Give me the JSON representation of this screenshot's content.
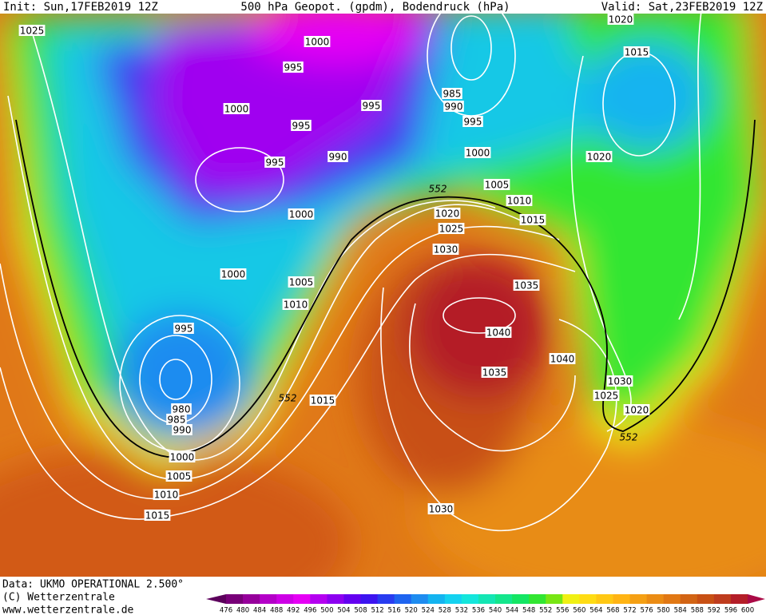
{
  "header": {
    "init": "Init: Sun,17FEB2019 12Z",
    "title": "500 hPa Geopot. (gpdm), Bodendruck (hPa)",
    "valid": "Valid: Sat,23FEB2019 12Z"
  },
  "footer": {
    "data": "Data: UKMO OPERATIONAL 2.500°",
    "copyright": "(C) Wetterzentrale",
    "url": "www.wetterzentrale.de"
  },
  "colorbar": {
    "labels": [
      476,
      480,
      484,
      488,
      492,
      496,
      500,
      504,
      508,
      512,
      516,
      520,
      524,
      528,
      532,
      536,
      540,
      544,
      548,
      552,
      556,
      560,
      564,
      568,
      572,
      576,
      580,
      584,
      588,
      592,
      596,
      600
    ],
    "colors": [
      "#5c005c",
      "#780078",
      "#96009b",
      "#b400c8",
      "#cd00e6",
      "#e600f5",
      "#b400f0",
      "#8c00f0",
      "#6400f0",
      "#3c14f0",
      "#283cf0",
      "#1e64f0",
      "#1e8cf0",
      "#14b4f0",
      "#14d2f0",
      "#14e6dc",
      "#14e6b4",
      "#14e68c",
      "#14e664",
      "#32e632",
      "#78e614",
      "#f0f014",
      "#ffdc14",
      "#ffc814",
      "#ffb414",
      "#f5a014",
      "#eb8c14",
      "#e17814",
      "#d26414",
      "#c85014",
      "#be3c1e",
      "#b41e28",
      "#aa0a46"
    ]
  },
  "isobar_labels": [
    "1025",
    "1000",
    "995",
    "1000",
    "995",
    "995",
    "985",
    "990",
    "995",
    "990",
    "995",
    "1000",
    "1020",
    "1020",
    "1015",
    "1005",
    "1010",
    "1020",
    "1015",
    "1025",
    "1000",
    "1030",
    "1000",
    "1005",
    "1010",
    "1035",
    "1040",
    "995",
    "1040",
    "1035",
    "1030",
    "1025",
    "1020",
    "1015",
    "980",
    "985",
    "990",
    "1000",
    "1005",
    "1010",
    "1015",
    "1030"
  ],
  "height_labels": [
    "552",
    "552",
    "552"
  ]
}
